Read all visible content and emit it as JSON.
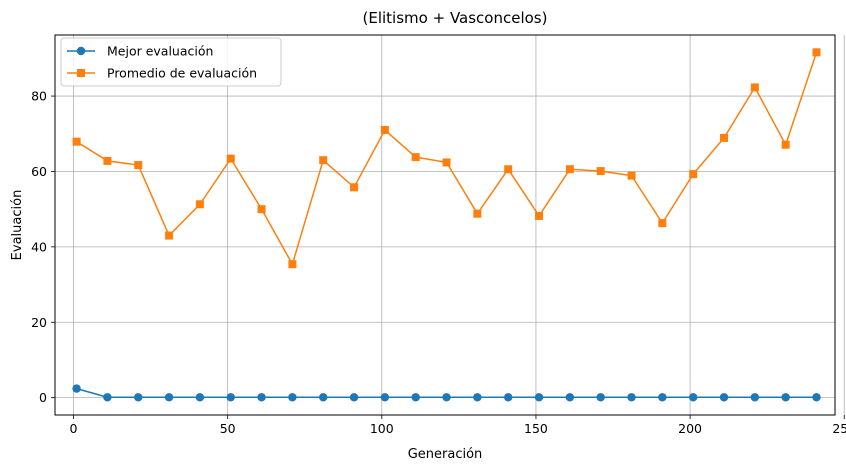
{
  "chart_data": {
    "type": "line",
    "title": "(Elitismo + Vasconcelos)",
    "xlabel": "Generación",
    "ylabel": "Evaluación",
    "xlim": [
      -6,
      247
    ],
    "ylim": [
      -4.6,
      96.2
    ],
    "x_ticks": [
      0,
      50,
      100,
      150,
      200,
      250
    ],
    "y_ticks": [
      0,
      20,
      40,
      60,
      80
    ],
    "grid": true,
    "legend_position": "top-left",
    "x": [
      1,
      11,
      21,
      31,
      41,
      51,
      61,
      71,
      81,
      91,
      101,
      111,
      121,
      131,
      141,
      151,
      161,
      171,
      181,
      191,
      201,
      211,
      221,
      231,
      241
    ],
    "series": [
      {
        "name": "Mejor evaluación",
        "color": "#1f77b4",
        "marker": "circle",
        "values": [
          2.4,
          0.1,
          0.1,
          0.1,
          0.1,
          0.1,
          0.1,
          0.1,
          0.1,
          0.1,
          0.1,
          0.1,
          0.1,
          0.1,
          0.1,
          0.1,
          0.1,
          0.1,
          0.1,
          0.1,
          0.1,
          0.1,
          0.1,
          0.1,
          0.1
        ]
      },
      {
        "name": "Promedio de evaluación",
        "color": "#ff7f0e",
        "marker": "square",
        "values": [
          67.9,
          62.8,
          61.7,
          43.0,
          51.3,
          63.4,
          50.0,
          35.4,
          63.0,
          55.8,
          71.0,
          63.8,
          62.4,
          48.8,
          60.6,
          48.2,
          60.6,
          60.1,
          58.9,
          46.3,
          59.3,
          68.9,
          82.3,
          67.1,
          91.6
        ]
      }
    ]
  }
}
